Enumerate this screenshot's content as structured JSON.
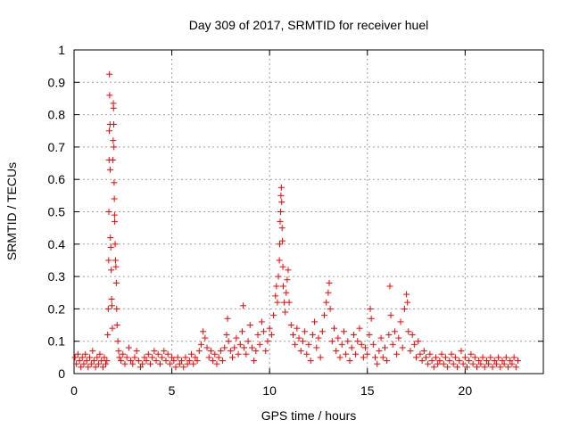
{
  "chart_data": {
    "type": "scatter",
    "title": "Day 309 of 2017, SRMTID for receiver huel",
    "xlabel": "GPS time / hours",
    "ylabel": "SRMTID / TECUs",
    "xlim": [
      0,
      24
    ],
    "ylim": [
      0,
      1
    ],
    "xticks": [
      0,
      5,
      10,
      15,
      20
    ],
    "xtick_labels": [
      "0",
      "5",
      "10",
      "15",
      "20"
    ],
    "yticks": [
      0,
      0.1,
      0.2,
      0.3,
      0.4,
      0.5,
      0.6,
      0.7,
      0.8,
      0.9,
      1
    ],
    "ytick_labels": [
      "0",
      "0.1",
      "0.2",
      "0.3",
      "0.4",
      "0.5",
      "0.6",
      "0.7",
      "0.8",
      "0.9",
      "1"
    ],
    "grid": true,
    "marker": "+",
    "marker_color": "#ff0000",
    "series": [
      {
        "name": "SRMTID",
        "points": [
          [
            0.05,
            0.05
          ],
          [
            0.12,
            0.03
          ],
          [
            0.2,
            0.06
          ],
          [
            0.28,
            0.04
          ],
          [
            0.35,
            0.02
          ],
          [
            0.42,
            0.05
          ],
          [
            0.5,
            0.03
          ],
          [
            0.58,
            0.06
          ],
          [
            0.65,
            0.04
          ],
          [
            0.72,
            0.02
          ],
          [
            0.8,
            0.05
          ],
          [
            0.88,
            0.03
          ],
          [
            0.95,
            0.07
          ],
          [
            1.02,
            0.04
          ],
          [
            1.1,
            0.02
          ],
          [
            1.18,
            0.05
          ],
          [
            1.25,
            0.03
          ],
          [
            1.32,
            0.06
          ],
          [
            1.4,
            0.04
          ],
          [
            1.48,
            0.02
          ],
          [
            1.55,
            0.05
          ],
          [
            1.62,
            0.03
          ],
          [
            1.68,
            0.04
          ],
          [
            1.72,
            0.12
          ],
          [
            1.75,
            0.2
          ],
          [
            1.77,
            0.35
          ],
          [
            1.78,
            0.5
          ],
          [
            1.79,
            0.66
          ],
          [
            1.8,
            0.75
          ],
          [
            1.81,
            0.925
          ],
          [
            1.82,
            0.86
          ],
          [
            1.84,
            0.77
          ],
          [
            1.85,
            0.63
          ],
          [
            1.86,
            0.42
          ],
          [
            1.88,
            0.39
          ],
          [
            1.9,
            0.32
          ],
          [
            1.92,
            0.23
          ],
          [
            1.94,
            0.21
          ],
          [
            1.96,
            0.14
          ],
          [
            1.98,
            0.66
          ],
          [
            2.0,
            0.72
          ],
          [
            2.01,
            0.835
          ],
          [
            2.02,
            0.82
          ],
          [
            2.03,
            0.77
          ],
          [
            2.04,
            0.7
          ],
          [
            2.05,
            0.59
          ],
          [
            2.06,
            0.54
          ],
          [
            2.07,
            0.49
          ],
          [
            2.08,
            0.47
          ],
          [
            2.1,
            0.4
          ],
          [
            2.12,
            0.35
          ],
          [
            2.14,
            0.33
          ],
          [
            2.16,
            0.28
          ],
          [
            2.18,
            0.2
          ],
          [
            2.2,
            0.15
          ],
          [
            2.24,
            0.1
          ],
          [
            2.28,
            0.07
          ],
          [
            2.32,
            0.05
          ],
          [
            2.4,
            0.04
          ],
          [
            2.5,
            0.06
          ],
          [
            2.6,
            0.03
          ],
          [
            2.7,
            0.05
          ],
          [
            2.8,
            0.08
          ],
          [
            2.9,
            0.04
          ],
          [
            3.0,
            0.03
          ],
          [
            3.1,
            0.05
          ],
          [
            3.2,
            0.07
          ],
          [
            3.3,
            0.04
          ],
          [
            3.4,
            0.02
          ],
          [
            3.5,
            0.03
          ],
          [
            3.6,
            0.05
          ],
          [
            3.7,
            0.04
          ],
          [
            3.8,
            0.06
          ],
          [
            3.9,
            0.03
          ],
          [
            4.0,
            0.05
          ],
          [
            4.1,
            0.07
          ],
          [
            4.2,
            0.04
          ],
          [
            4.3,
            0.06
          ],
          [
            4.4,
            0.03
          ],
          [
            4.5,
            0.05
          ],
          [
            4.6,
            0.07
          ],
          [
            4.7,
            0.04
          ],
          [
            4.8,
            0.06
          ],
          [
            4.9,
            0.03
          ],
          [
            5.0,
            0.05
          ],
          [
            5.1,
            0.04
          ],
          [
            5.2,
            0.02
          ],
          [
            5.3,
            0.05
          ],
          [
            5.4,
            0.03
          ],
          [
            5.5,
            0.04
          ],
          [
            5.6,
            0.02
          ],
          [
            5.7,
            0.05
          ],
          [
            5.8,
            0.03
          ],
          [
            5.9,
            0.04
          ],
          [
            6.0,
            0.06
          ],
          [
            6.1,
            0.03
          ],
          [
            6.2,
            0.05
          ],
          [
            6.3,
            0.04
          ],
          [
            6.4,
            0.07
          ],
          [
            6.5,
            0.09
          ],
          [
            6.6,
            0.13
          ],
          [
            6.7,
            0.11
          ],
          [
            6.8,
            0.08
          ],
          [
            6.9,
            0.05
          ],
          [
            7.0,
            0.07
          ],
          [
            7.1,
            0.04
          ],
          [
            7.2,
            0.06
          ],
          [
            7.3,
            0.03
          ],
          [
            7.4,
            0.05
          ],
          [
            7.5,
            0.07
          ],
          [
            7.6,
            0.04
          ],
          [
            7.7,
            0.08
          ],
          [
            7.8,
            0.12
          ],
          [
            7.85,
            0.17
          ],
          [
            7.9,
            0.1
          ],
          [
            8.0,
            0.07
          ],
          [
            8.1,
            0.05
          ],
          [
            8.2,
            0.08
          ],
          [
            8.3,
            0.11
          ],
          [
            8.4,
            0.06
          ],
          [
            8.5,
            0.09
          ],
          [
            8.6,
            0.13
          ],
          [
            8.65,
            0.21
          ],
          [
            8.7,
            0.08
          ],
          [
            8.8,
            0.06
          ],
          [
            8.9,
            0.1
          ],
          [
            9.0,
            0.15
          ],
          [
            9.1,
            0.08
          ],
          [
            9.2,
            0.04
          ],
          [
            9.3,
            0.07
          ],
          [
            9.4,
            0.12
          ],
          [
            9.5,
            0.09
          ],
          [
            9.6,
            0.16
          ],
          [
            9.7,
            0.13
          ],
          [
            9.8,
            0.07
          ],
          [
            9.9,
            0.1
          ],
          [
            10.0,
            0.14
          ],
          [
            10.1,
            0.12
          ],
          [
            10.2,
            0.18
          ],
          [
            10.3,
            0.24
          ],
          [
            10.35,
            0.27
          ],
          [
            10.4,
            0.22
          ],
          [
            10.45,
            0.3
          ],
          [
            10.5,
            0.35
          ],
          [
            10.52,
            0.4
          ],
          [
            10.54,
            0.47
          ],
          [
            10.56,
            0.5
          ],
          [
            10.58,
            0.55
          ],
          [
            10.6,
            0.575
          ],
          [
            10.62,
            0.53
          ],
          [
            10.64,
            0.45
          ],
          [
            10.66,
            0.41
          ],
          [
            10.68,
            0.33
          ],
          [
            10.7,
            0.27
          ],
          [
            10.75,
            0.22
          ],
          [
            10.8,
            0.19
          ],
          [
            10.85,
            0.25
          ],
          [
            10.9,
            0.29
          ],
          [
            10.95,
            0.32
          ],
          [
            11.0,
            0.22
          ],
          [
            11.1,
            0.15
          ],
          [
            11.2,
            0.12
          ],
          [
            11.3,
            0.09
          ],
          [
            11.4,
            0.14
          ],
          [
            11.5,
            0.11
          ],
          [
            11.6,
            0.07
          ],
          [
            11.7,
            0.1
          ],
          [
            11.8,
            0.13
          ],
          [
            11.9,
            0.06
          ],
          [
            12.0,
            0.09
          ],
          [
            12.1,
            0.04
          ],
          [
            12.2,
            0.12
          ],
          [
            12.3,
            0.16
          ],
          [
            12.4,
            0.08
          ],
          [
            12.5,
            0.11
          ],
          [
            12.6,
            0.05
          ],
          [
            12.7,
            0.13
          ],
          [
            12.8,
            0.18
          ],
          [
            12.9,
            0.22
          ],
          [
            13.0,
            0.25
          ],
          [
            13.05,
            0.28
          ],
          [
            13.1,
            0.2
          ],
          [
            13.2,
            0.1
          ],
          [
            13.3,
            0.14
          ],
          [
            13.4,
            0.07
          ],
          [
            13.5,
            0.11
          ],
          [
            13.6,
            0.05
          ],
          [
            13.7,
            0.09
          ],
          [
            13.8,
            0.13
          ],
          [
            13.9,
            0.06
          ],
          [
            14.0,
            0.1
          ],
          [
            14.1,
            0.04
          ],
          [
            14.2,
            0.08
          ],
          [
            14.3,
            0.12
          ],
          [
            14.4,
            0.06
          ],
          [
            14.5,
            0.1
          ],
          [
            14.6,
            0.14
          ],
          [
            14.7,
            0.09
          ],
          [
            14.8,
            0.05
          ],
          [
            14.9,
            0.08
          ],
          [
            15.0,
            0.06
          ],
          [
            15.1,
            0.12
          ],
          [
            15.15,
            0.2
          ],
          [
            15.2,
            0.17
          ],
          [
            15.3,
            0.09
          ],
          [
            15.4,
            0.05
          ],
          [
            15.5,
            0.03
          ],
          [
            15.6,
            0.07
          ],
          [
            15.7,
            0.11
          ],
          [
            15.8,
            0.05
          ],
          [
            15.9,
            0.08
          ],
          [
            16.0,
            0.04
          ],
          [
            16.1,
            0.12
          ],
          [
            16.15,
            0.27
          ],
          [
            16.2,
            0.18
          ],
          [
            16.3,
            0.09
          ],
          [
            16.4,
            0.13
          ],
          [
            16.5,
            0.06
          ],
          [
            16.6,
            0.11
          ],
          [
            16.7,
            0.16
          ],
          [
            16.8,
            0.08
          ],
          [
            16.9,
            0.2
          ],
          [
            17.0,
            0.245
          ],
          [
            17.05,
            0.22
          ],
          [
            17.1,
            0.13
          ],
          [
            17.2,
            0.07
          ],
          [
            17.3,
            0.12
          ],
          [
            17.4,
            0.09
          ],
          [
            17.5,
            0.05
          ],
          [
            17.6,
            0.1
          ],
          [
            17.7,
            0.06
          ],
          [
            17.8,
            0.04
          ],
          [
            17.9,
            0.07
          ],
          [
            18.0,
            0.05
          ],
          [
            18.1,
            0.03
          ],
          [
            18.2,
            0.06
          ],
          [
            18.3,
            0.04
          ],
          [
            18.4,
            0.02
          ],
          [
            18.5,
            0.05
          ],
          [
            18.6,
            0.03
          ],
          [
            18.7,
            0.04
          ],
          [
            18.8,
            0.06
          ],
          [
            18.9,
            0.03
          ],
          [
            19.0,
            0.05
          ],
          [
            19.1,
            0.02
          ],
          [
            19.2,
            0.04
          ],
          [
            19.3,
            0.06
          ],
          [
            19.4,
            0.03
          ],
          [
            19.5,
            0.05
          ],
          [
            19.6,
            0.02
          ],
          [
            19.7,
            0.04
          ],
          [
            19.8,
            0.07
          ],
          [
            19.9,
            0.03
          ],
          [
            20.0,
            0.05
          ],
          [
            20.1,
            0.02
          ],
          [
            20.2,
            0.04
          ],
          [
            20.3,
            0.06
          ],
          [
            20.4,
            0.03
          ],
          [
            20.5,
            0.05
          ],
          [
            20.6,
            0.02
          ],
          [
            20.7,
            0.04
          ],
          [
            20.8,
            0.03
          ],
          [
            20.9,
            0.05
          ],
          [
            21.0,
            0.02
          ],
          [
            21.1,
            0.04
          ],
          [
            21.2,
            0.03
          ],
          [
            21.3,
            0.05
          ],
          [
            21.4,
            0.02
          ],
          [
            21.5,
            0.04
          ],
          [
            21.6,
            0.03
          ],
          [
            21.7,
            0.05
          ],
          [
            21.8,
            0.02
          ],
          [
            21.9,
            0.04
          ],
          [
            22.0,
            0.03
          ],
          [
            22.1,
            0.05
          ],
          [
            22.2,
            0.02
          ],
          [
            22.3,
            0.04
          ],
          [
            22.4,
            0.03
          ],
          [
            22.5,
            0.05
          ],
          [
            22.6,
            0.02
          ],
          [
            22.7,
            0.04
          ]
        ]
      }
    ]
  }
}
